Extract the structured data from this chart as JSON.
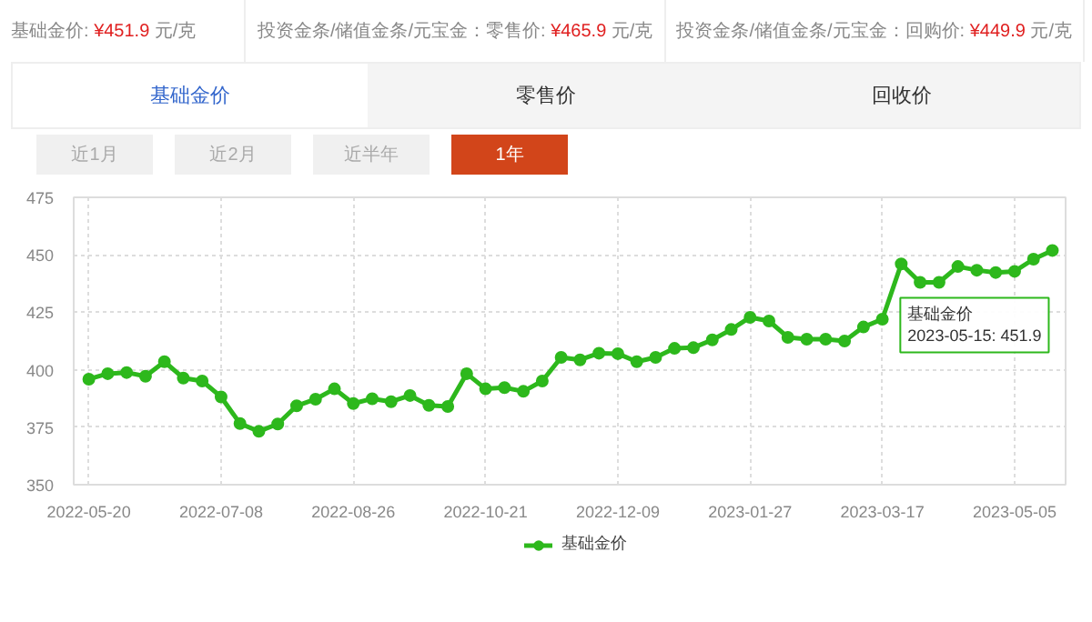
{
  "chart_data": {
    "type": "line",
    "categories": [
      "2022-05-20",
      null,
      null,
      null,
      null,
      null,
      null,
      "2022-07-08",
      null,
      null,
      null,
      null,
      null,
      null,
      "2022-08-26",
      null,
      null,
      null,
      null,
      null,
      null,
      "2022-10-21",
      null,
      null,
      null,
      null,
      null,
      null,
      "2022-12-09",
      null,
      null,
      null,
      null,
      null,
      null,
      "2023-01-27",
      null,
      null,
      null,
      null,
      null,
      null,
      "2023-03-17",
      null,
      null,
      null,
      null,
      null,
      null,
      "2023-05-05",
      null,
      null
    ],
    "series": [
      {
        "name": "基础金价",
        "color": "#2db81c",
        "values": [
          395.9,
          398.3,
          398.8,
          397.2,
          403.5,
          396.4,
          395.1,
          388.2,
          376.6,
          373.2,
          376.4,
          384.3,
          387.2,
          391.7,
          385.3,
          387.4,
          386.1,
          388.8,
          384.5,
          384.0,
          398.3,
          391.7,
          392.2,
          390.6,
          395.1,
          405.4,
          404.3,
          407.2,
          407.0,
          403.5,
          405.4,
          409.3,
          409.6,
          413.0,
          417.5,
          422.8,
          421.2,
          414.1,
          413.3,
          413.3,
          412.5,
          418.6,
          422.0,
          446.0,
          438.0,
          438.0,
          444.9,
          443.3,
          442.3,
          442.8,
          448.1,
          451.9
        ]
      }
    ],
    "ylim": [
      350,
      475
    ],
    "yticks": [
      350,
      375,
      400,
      425,
      450,
      475
    ],
    "grid": true,
    "legend": "bottom",
    "marker": "circle",
    "line_style": "solid",
    "annotations": [
      "基础金价: ¥451.9 元/克",
      "投资金条/储值金条/元宝金：零售价: ¥465.9 元/克",
      "投资金条/储值金条/元宝金：回购价: ¥449.9 元/克",
      "基础金价",
      "零售价",
      "回收价",
      "近1月",
      "近2月",
      "近半年",
      "1年",
      "基础金价\n2023-05-15: 451.9"
    ]
  }
}
